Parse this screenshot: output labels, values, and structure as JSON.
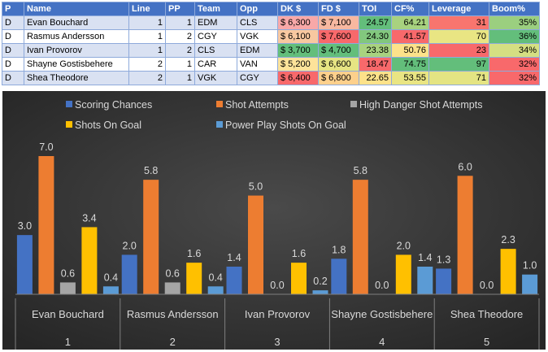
{
  "table": {
    "headers": [
      "P",
      "Name",
      "Line",
      "PP",
      "Team",
      "Opp",
      "DK $",
      "FD $",
      "TOI",
      "CF%",
      "Leverage",
      "Boom%"
    ],
    "rows": [
      {
        "p": "D",
        "name": "Evan Bouchard",
        "line": "1",
        "pp": "1",
        "team": "EDM",
        "opp": "CLS",
        "dk": "$ 6,300",
        "fd": "$ 7,100",
        "toi": "24.57",
        "cf": "64.21",
        "lev": "31",
        "boom": "35%"
      },
      {
        "p": "D",
        "name": "Rasmus Andersson",
        "line": "1",
        "pp": "2",
        "team": "CGY",
        "opp": "VGK",
        "dk": "$ 6,100",
        "fd": "$ 7,600",
        "toi": "24.30",
        "cf": "41.57",
        "lev": "70",
        "boom": "36%"
      },
      {
        "p": "D",
        "name": "Ivan Provorov",
        "line": "1",
        "pp": "2",
        "team": "CLS",
        "opp": "EDM",
        "dk": "$ 3,700",
        "fd": "$ 4,700",
        "toi": "23.38",
        "cf": "50.76",
        "lev": "23",
        "boom": "34%"
      },
      {
        "p": "D",
        "name": "Shayne Gostisbehere",
        "line": "2",
        "pp": "1",
        "team": "CAR",
        "opp": "VAN",
        "dk": "$ 5,200",
        "fd": "$ 6,600",
        "toi": "18.47",
        "cf": "74.75",
        "lev": "97",
        "boom": "32%"
      },
      {
        "p": "D",
        "name": "Shea Theodore",
        "line": "2",
        "pp": "1",
        "team": "VGK",
        "opp": "CGY",
        "dk": "$ 6,400",
        "fd": "$ 6,800",
        "toi": "22.65",
        "cf": "53.55",
        "lev": "71",
        "boom": "32%"
      }
    ],
    "cell_colors": {
      "dk": [
        "#f8a8a8",
        "#f8c8a0",
        "#63be7b",
        "#fde39a",
        "#f8696b"
      ],
      "fd": [
        "#f8b8a0",
        "#f8696b",
        "#63be7b",
        "#e6e483",
        "#fdd08c"
      ],
      "toi": [
        "#63be7b",
        "#82c77e",
        "#a8d27f",
        "#f8696b",
        "#fde28a"
      ],
      "cf": [
        "#a8d27f",
        "#f8696b",
        "#fde28a",
        "#63be7b",
        "#e9e583"
      ],
      "lev": [
        "#f8756e",
        "#e9e583",
        "#f8696b",
        "#63be7b",
        "#e4e483"
      ],
      "boom": [
        "#9bcf7f",
        "#63be7b",
        "#d5df82",
        "#f8696b",
        "#f8696b"
      ]
    }
  },
  "chart_data": {
    "type": "bar",
    "categories": [
      "Evan Bouchard",
      "Rasmus Andersson",
      "Ivan Provorov",
      "Shayne Gostisbehere",
      "Shea Theodore"
    ],
    "category_numbers": [
      "1",
      "2",
      "3",
      "4",
      "5"
    ],
    "ylim": [
      0,
      7.5
    ],
    "series": [
      {
        "name": "Scoring Chances",
        "color": "#4472c4",
        "values": [
          3.0,
          2.0,
          1.4,
          1.8,
          1.3
        ]
      },
      {
        "name": "Shot Attempts",
        "color": "#ed7d31",
        "values": [
          7.0,
          5.8,
          5.0,
          5.8,
          6.0
        ]
      },
      {
        "name": "High Danger Shot Attempts",
        "color": "#a5a5a5",
        "values": [
          0.6,
          0.6,
          0.0,
          0.0,
          0.0
        ]
      },
      {
        "name": "Shots On Goal",
        "color": "#ffc000",
        "values": [
          3.4,
          1.6,
          1.6,
          2.0,
          2.3
        ]
      },
      {
        "name": "Power Play Shots On Goal",
        "color": "#5b9bd5",
        "values": [
          0.4,
          0.4,
          0.2,
          1.4,
          1.0
        ]
      }
    ],
    "legend_position": "top"
  }
}
